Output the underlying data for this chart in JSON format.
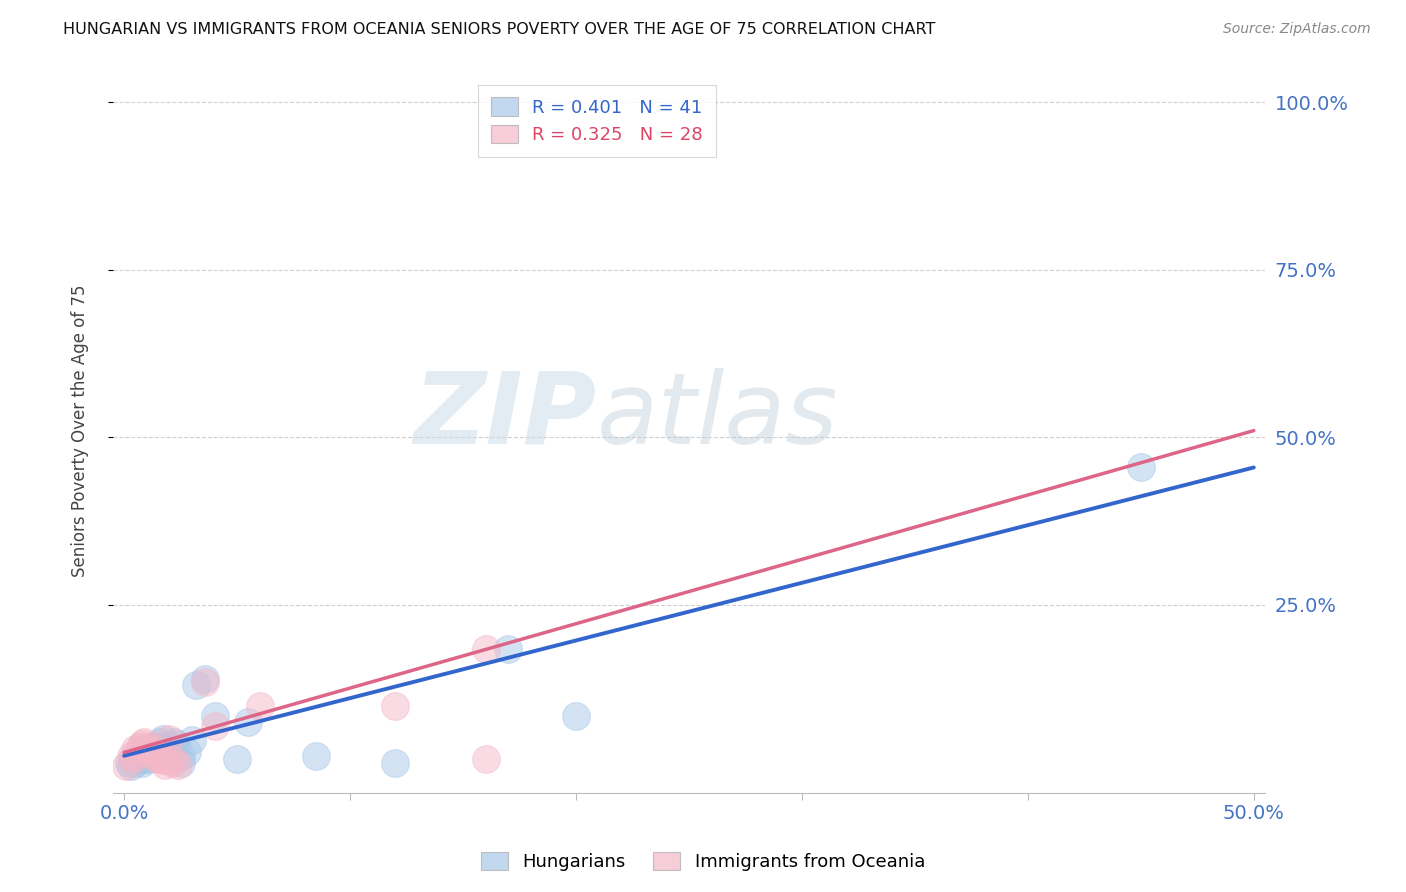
{
  "title": "HUNGARIAN VS IMMIGRANTS FROM OCEANIA SENIORS POVERTY OVER THE AGE OF 75 CORRELATION CHART",
  "source": "Source: ZipAtlas.com",
  "ylabel": "Seniors Poverty Over the Age of 75",
  "right_yticks": [
    "100.0%",
    "75.0%",
    "50.0%",
    "25.0%"
  ],
  "right_ytick_vals": [
    1.0,
    0.75,
    0.5,
    0.25
  ],
  "color_blue": "#a8c8e8",
  "color_pink": "#f4b8c8",
  "trendline_blue": "#3366cc",
  "trendline_pink": "#dd6688",
  "watermark_zip": "ZIP",
  "watermark_atlas": "atlas",
  "blue_scatter": [
    [
      0.002,
      0.015
    ],
    [
      0.003,
      0.01
    ],
    [
      0.004,
      0.02
    ],
    [
      0.005,
      0.025
    ],
    [
      0.005,
      0.015
    ],
    [
      0.006,
      0.02
    ],
    [
      0.007,
      0.03
    ],
    [
      0.007,
      0.025
    ],
    [
      0.008,
      0.015
    ],
    [
      0.008,
      0.035
    ],
    [
      0.009,
      0.02
    ],
    [
      0.009,
      0.03
    ],
    [
      0.01,
      0.025
    ],
    [
      0.01,
      0.02
    ],
    [
      0.011,
      0.03
    ],
    [
      0.012,
      0.025
    ],
    [
      0.012,
      0.035
    ],
    [
      0.013,
      0.03
    ],
    [
      0.014,
      0.04
    ],
    [
      0.015,
      0.035
    ],
    [
      0.016,
      0.045
    ],
    [
      0.017,
      0.05
    ],
    [
      0.018,
      0.04
    ],
    [
      0.019,
      0.035
    ],
    [
      0.02,
      0.04
    ],
    [
      0.022,
      0.045
    ],
    [
      0.023,
      0.042
    ],
    [
      0.025,
      0.015
    ],
    [
      0.025,
      0.025
    ],
    [
      0.028,
      0.03
    ],
    [
      0.03,
      0.048
    ],
    [
      0.032,
      0.13
    ],
    [
      0.036,
      0.14
    ],
    [
      0.04,
      0.085
    ],
    [
      0.05,
      0.02
    ],
    [
      0.055,
      0.075
    ],
    [
      0.085,
      0.025
    ],
    [
      0.12,
      0.015
    ],
    [
      0.17,
      0.185
    ],
    [
      0.2,
      0.085
    ],
    [
      0.45,
      0.455
    ]
  ],
  "pink_scatter": [
    [
      0.001,
      0.01
    ],
    [
      0.003,
      0.025
    ],
    [
      0.004,
      0.02
    ],
    [
      0.005,
      0.035
    ],
    [
      0.006,
      0.03
    ],
    [
      0.007,
      0.038
    ],
    [
      0.008,
      0.042
    ],
    [
      0.009,
      0.045
    ],
    [
      0.01,
      0.03
    ],
    [
      0.011,
      0.035
    ],
    [
      0.012,
      0.04
    ],
    [
      0.013,
      0.028
    ],
    [
      0.014,
      0.022
    ],
    [
      0.015,
      0.02
    ],
    [
      0.016,
      0.025
    ],
    [
      0.017,
      0.018
    ],
    [
      0.018,
      0.012
    ],
    [
      0.019,
      0.018
    ],
    [
      0.02,
      0.05
    ],
    [
      0.021,
      0.015
    ],
    [
      0.022,
      0.018
    ],
    [
      0.024,
      0.012
    ],
    [
      0.036,
      0.135
    ],
    [
      0.04,
      0.07
    ],
    [
      0.06,
      0.1
    ],
    [
      0.12,
      0.1
    ],
    [
      0.16,
      0.185
    ],
    [
      0.16,
      0.02
    ]
  ],
  "blue_trend_x": [
    0.0,
    0.5
  ],
  "blue_trend_y": [
    0.025,
    0.455
  ],
  "pink_trend_x": [
    0.0,
    0.5
  ],
  "pink_trend_y": [
    0.03,
    0.51
  ],
  "xlim": [
    -0.005,
    0.505
  ],
  "ylim": [
    -0.03,
    1.05
  ],
  "xtick_positions": [
    0.0,
    0.1,
    0.2,
    0.3,
    0.4,
    0.5
  ],
  "xtick_labels": [
    "0.0%",
    "",
    "",
    "",
    "",
    "50.0%"
  ]
}
